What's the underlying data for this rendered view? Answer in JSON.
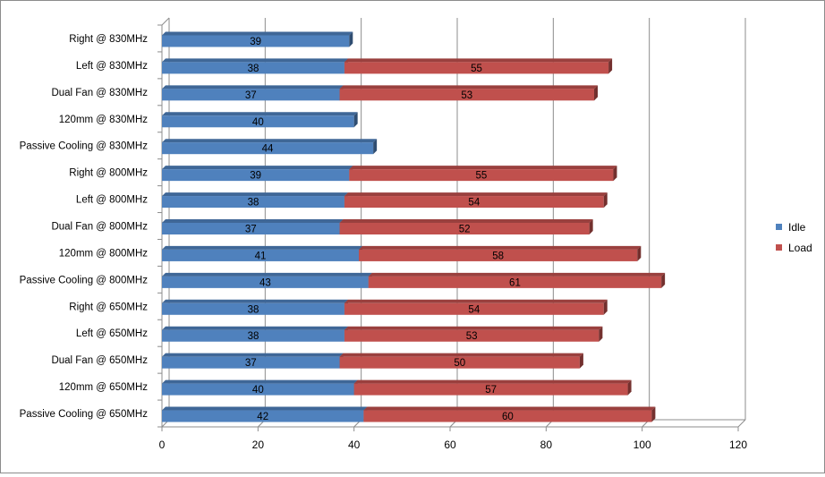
{
  "chart_data": {
    "type": "bar",
    "orientation": "horizontal",
    "stacked": true,
    "title": "",
    "xlabel": "",
    "ylabel": "",
    "xlim": [
      0,
      120
    ],
    "xticks": [
      0,
      20,
      40,
      60,
      80,
      100,
      120
    ],
    "grid": true,
    "legend_position": "right",
    "categories": [
      "Right @ 830MHz",
      "Left @ 830MHz",
      "Dual Fan @ 830MHz",
      "120mm @ 830MHz",
      "Passive Cooling @ 830MHz",
      "Right @ 800MHz",
      "Left @ 800MHz",
      "Dual Fan @ 800MHz",
      "120mm @ 800MHz",
      "Passive Cooling @ 800MHz",
      "Right @ 650MHz",
      "Left @ 650MHz",
      "Dual Fan @ 650MHz",
      "120mm @ 650MHz",
      "Passive Cooling @ 650MHz"
    ],
    "series": [
      {
        "name": "Idle",
        "color": "#4f81bd",
        "values": [
          39,
          38,
          37,
          40,
          44,
          39,
          38,
          37,
          41,
          43,
          38,
          38,
          37,
          40,
          42
        ]
      },
      {
        "name": "Load",
        "color": "#c0504d",
        "values": [
          null,
          55,
          53,
          null,
          null,
          55,
          54,
          52,
          58,
          61,
          54,
          53,
          50,
          57,
          60
        ]
      }
    ]
  }
}
